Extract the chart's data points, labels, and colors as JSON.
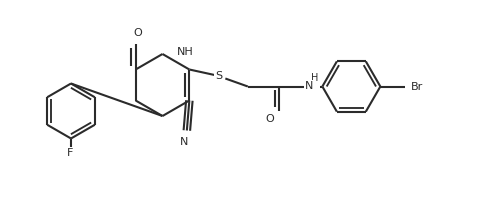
{
  "bg_color": "#ffffff",
  "line_color": "#2b2b2b",
  "line_width": 1.5,
  "figsize": [
    5.03,
    2.16
  ],
  "dpi": 100,
  "xlim": [
    0,
    10.06
  ],
  "ylim": [
    0,
    4.32
  ]
}
